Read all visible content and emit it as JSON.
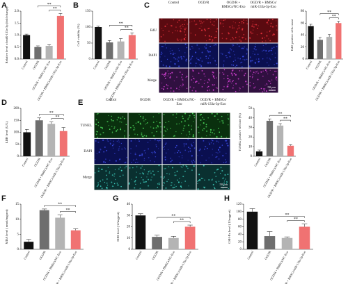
{
  "figure": {
    "images": [
      {
        "panel": "C",
        "columns": [
          "Control",
          "OGD/R",
          "OGD/R + BMSCs/NC-Exo",
          "OGD/R + BMSCs/ miR-133a-3p-Exo"
        ],
        "rows": [
          "EdU",
          "DAPI",
          "Merge"
        ],
        "scale_bar": "50 μm"
      },
      {
        "panel": "E",
        "columns": [
          "Control",
          "OGD/R",
          "OGD/R + BMSCs/NC-Exo",
          "OGD/R + BMSCs/ miR-133a-3p-Exo"
        ],
        "rows": [
          "TUNEL",
          "DAPI",
          "Merge"
        ],
        "scale_bar": "50 μm"
      }
    ]
  },
  "chart_data": [
    {
      "type": "bar",
      "panel": "A",
      "y_label": "Relative level of miR-133a-3p (fold change)",
      "categories": [
        "Control",
        "OGD/R",
        "OGD/R + BMSCs/NC-Exo",
        "OGD/R + BMSCs/miR-133a-3p-Exo"
      ],
      "values": [
        1.0,
        0.5,
        0.55,
        1.8
      ],
      "errors": [
        0.04,
        0.05,
        0.05,
        0.1
      ],
      "colors": [
        "#111111",
        "#6e6e6e",
        "#b4b4b4",
        "#f07272"
      ],
      "ylim": [
        0,
        2
      ],
      "yticks": [
        {
          "value": 0,
          "label": "0.0"
        },
        {
          "value": 0.5,
          "label": "0.5"
        },
        {
          "value": 1,
          "label": "1.0"
        },
        {
          "value": 1.5,
          "label": "1.5"
        },
        {
          "value": 2,
          "label": "2.0"
        }
      ],
      "annotations": [
        "**",
        "**"
      ]
    },
    {
      "type": "bar",
      "panel": "B",
      "y_label": "Cell viability (%)",
      "categories": [
        "Control",
        "OGD/R",
        "OGD/R + BMSCs/NC-Exo",
        "OGD/R + BMSCs/miR-133a-3p-Exo"
      ],
      "values": [
        100,
        52,
        55,
        75
      ],
      "errors": [
        3,
        6,
        9,
        7
      ],
      "colors": [
        "#111111",
        "#6e6e6e",
        "#b4b4b4",
        "#f07272"
      ],
      "ylim": [
        0,
        150
      ],
      "yticks": [
        0,
        50,
        100,
        150
      ],
      "annotations": [
        "**",
        "**"
      ]
    },
    {
      "type": "bar",
      "y_label": "EdU positive cells count",
      "categories": [
        "Control",
        "OGD/R",
        "OGD/R + BMSCs/NC-Exo",
        "OGD/R + BMSCs/miR-133a-3p-Exo"
      ],
      "values": [
        55,
        32,
        37,
        60
      ],
      "errors": [
        3,
        4,
        4,
        3
      ],
      "colors": [
        "#111111",
        "#6e6e6e",
        "#b4b4b4",
        "#f07272"
      ],
      "ylim": [
        0,
        80
      ],
      "yticks": [
        0,
        20,
        40,
        60,
        80
      ],
      "annotations": [
        "**",
        "**"
      ]
    },
    {
      "type": "bar",
      "panel": "D",
      "y_label": "LDH level (U/L)",
      "categories": [
        "Control",
        "OGD/R",
        "OGD/R + BMSCs/NC-Exo",
        "OGD/R + BMSCs/miR-133a-3p-Exo"
      ],
      "values": [
        100,
        150,
        135,
        105
      ],
      "errors": [
        12,
        10,
        8,
        15
      ],
      "colors": [
        "#111111",
        "#6e6e6e",
        "#b4b4b4",
        "#f07272"
      ],
      "ylim": [
        0,
        200
      ],
      "yticks": [
        0,
        50,
        100,
        150,
        200
      ],
      "annotations": [
        "**",
        "**"
      ]
    },
    {
      "type": "bar",
      "y_label": "TUNEL positive cell rate (%)",
      "categories": [
        "Control",
        "OGD/R",
        "OGD/R + BMSCs/NC-Exo",
        "OGD/R + BMSCs/miR-133a-3p-Exo"
      ],
      "values": [
        5,
        37,
        32,
        11
      ],
      "errors": [
        1.5,
        2,
        2,
        1
      ],
      "colors": [
        "#111111",
        "#6e6e6e",
        "#b4b4b4",
        "#f07272"
      ],
      "ylim": [
        0,
        50
      ],
      "yticks": [
        0,
        10,
        20,
        30,
        40,
        50
      ],
      "annotations": [
        "**",
        "**"
      ]
    },
    {
      "type": "bar",
      "panel": "F",
      "y_label": "MDA level ( nmol/mgprot)",
      "categories": [
        "Control",
        "OGD/R",
        "OGD/R + BMSCs/NC-Exo",
        "OGD/R + BMSCs/miR-133a-3p-Exo"
      ],
      "values": [
        2.5,
        13,
        10.5,
        6.3
      ],
      "errors": [
        0.8,
        0.4,
        0.9,
        0.5
      ],
      "colors": [
        "#111111",
        "#6e6e6e",
        "#b4b4b4",
        "#f07272"
      ],
      "ylim": [
        0,
        15
      ],
      "yticks": [
        0,
        5,
        10,
        15
      ],
      "annotations": [
        "**",
        "**"
      ]
    },
    {
      "type": "bar",
      "panel": "G",
      "y_label": "SOD level ( U/mgprot)",
      "categories": [
        "Control",
        "OGD/R",
        "OGD/R + BMSCs/NC-Exo",
        "OGD/R + BMSCs/miR-133a-3p-Exo"
      ],
      "values": [
        30,
        11,
        10,
        20
      ],
      "errors": [
        1.5,
        1.5,
        1.5,
        1.5
      ],
      "colors": [
        "#111111",
        "#6e6e6e",
        "#b4b4b4",
        "#f07272"
      ],
      "ylim": [
        0,
        40
      ],
      "yticks": [
        0,
        10,
        20,
        30,
        40
      ],
      "annotations": [
        "**",
        "**"
      ]
    },
    {
      "type": "bar",
      "panel": "H",
      "y_label": "GSH-Px level ( U/mgprot)",
      "categories": [
        "Control",
        "OGD/R",
        "OGD/R + BMSCs/NC-Exo",
        "OGD/R + BMSCs/miR-133a-3p-Exo"
      ],
      "values": [
        100,
        35,
        30,
        60
      ],
      "errors": [
        8,
        12,
        3,
        7
      ],
      "colors": [
        "#111111",
        "#6e6e6e",
        "#b4b4b4",
        "#f07272"
      ],
      "ylim": [
        0,
        120
      ],
      "yticks": [
        0,
        20,
        40,
        60,
        80,
        100,
        120
      ],
      "annotations": [
        "**",
        "**"
      ]
    }
  ]
}
